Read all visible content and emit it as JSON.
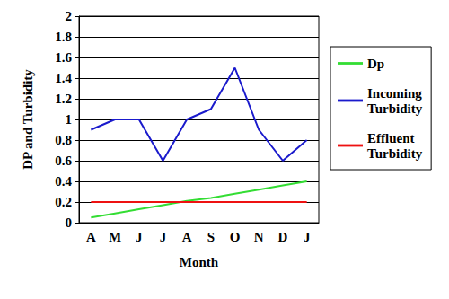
{
  "chart_data": {
    "type": "line",
    "x_label": "Month",
    "y_label": "DP and Turbidity",
    "categories": [
      "A",
      "M",
      "J",
      "J",
      "A",
      "S",
      "O",
      "N",
      "D",
      "J"
    ],
    "series": [
      {
        "name": "Dp",
        "color": "#33dd33",
        "values": [
          0.05,
          0.09,
          0.13,
          0.17,
          0.21,
          0.24,
          0.28,
          0.32,
          0.36,
          0.4
        ]
      },
      {
        "name": "Incoming Turbidity",
        "color": "#1a1acc",
        "values": [
          0.9,
          1.0,
          1.0,
          0.6,
          1.0,
          1.1,
          1.5,
          0.9,
          0.6,
          0.8
        ]
      },
      {
        "name": "Effluent Turbidity",
        "color": "#ee1111",
        "values": [
          0.2,
          0.2,
          0.2,
          0.2,
          0.2,
          0.2,
          0.2,
          0.2,
          0.2,
          0.2
        ]
      }
    ],
    "ylim": [
      0,
      2
    ],
    "yticks": [
      0,
      0.2,
      0.4,
      0.6,
      0.8,
      1,
      1.2,
      1.4,
      1.6,
      1.8,
      2
    ],
    "grid": true,
    "legend": "right"
  }
}
